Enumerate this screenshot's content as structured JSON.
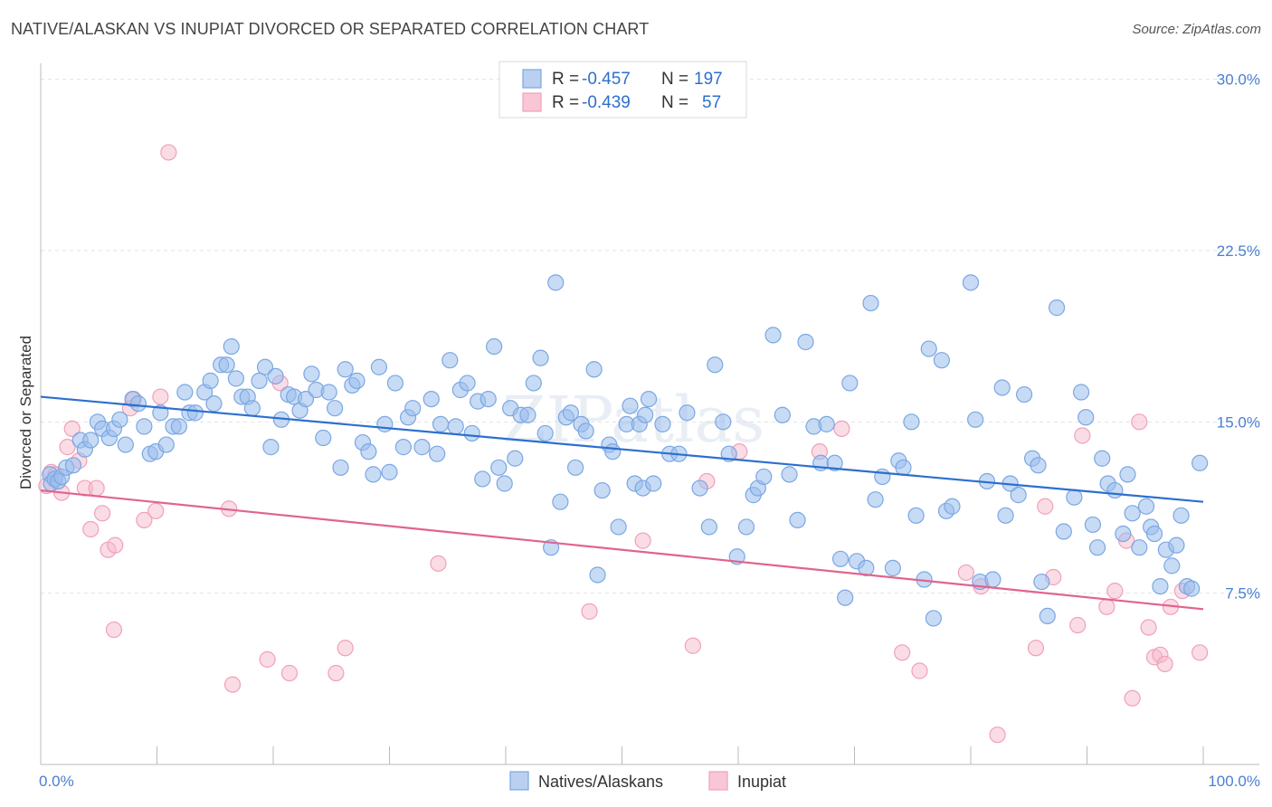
{
  "title": "NATIVE/ALASKAN VS INUPIAT DIVORCED OR SEPARATED CORRELATION CHART",
  "source": "Source: ZipAtlas.com",
  "watermark": "ZIPatlas",
  "colors": {
    "blue": "#7aa7e3",
    "blue_line": "#2d6fce",
    "pink": "#f1a0ba",
    "pink_line": "#e0648e",
    "axis_text": "#4a7fd0"
  },
  "legend": {
    "r_label": "R =",
    "n_label": "N =",
    "series": [
      {
        "name": "Natives/Alaskans",
        "r": "-0.457",
        "n": "197"
      },
      {
        "name": "Inupiat",
        "r": "-0.439",
        "n": "57"
      }
    ]
  },
  "chart_data": {
    "type": "scatter",
    "ylabel": "Divorced or Separated",
    "xlabel": "",
    "xlim": [
      0,
      100
    ],
    "ylim": [
      0,
      30.7
    ],
    "y_ticks": [
      7.5,
      15.0,
      22.5,
      30.0
    ],
    "y_tick_labels": [
      "7.5%",
      "15.0%",
      "22.5%",
      "30.0%"
    ],
    "x_tick_labels": [
      "0.0%",
      "100.0%"
    ],
    "grid": true,
    "series": [
      {
        "name": "Natives/Alaskans",
        "trend": [
          [
            0,
            16.1
          ],
          [
            100,
            11.5
          ]
        ],
        "points": [
          [
            0.8,
            12.7
          ],
          [
            0.9,
            12.3
          ],
          [
            1.2,
            12.5
          ],
          [
            1.5,
            12.4
          ],
          [
            1.8,
            12.6
          ],
          [
            2.2,
            13.0
          ],
          [
            2.8,
            13.1
          ],
          [
            3.4,
            14.2
          ],
          [
            3.8,
            13.8
          ],
          [
            4.3,
            14.2
          ],
          [
            4.9,
            15.0
          ],
          [
            5.3,
            14.7
          ],
          [
            5.9,
            14.3
          ],
          [
            6.3,
            14.7
          ],
          [
            6.8,
            15.1
          ],
          [
            7.3,
            14.0
          ],
          [
            7.9,
            16.0
          ],
          [
            8.4,
            15.8
          ],
          [
            8.9,
            14.8
          ],
          [
            9.4,
            13.6
          ],
          [
            9.9,
            13.7
          ],
          [
            10.3,
            15.4
          ],
          [
            10.8,
            14.0
          ],
          [
            11.4,
            14.8
          ],
          [
            11.9,
            14.8
          ],
          [
            12.4,
            16.3
          ],
          [
            12.8,
            15.4
          ],
          [
            13.3,
            15.4
          ],
          [
            14.1,
            16.3
          ],
          [
            14.6,
            16.8
          ],
          [
            14.9,
            15.8
          ],
          [
            15.5,
            17.5
          ],
          [
            16.0,
            17.5
          ],
          [
            16.4,
            18.3
          ],
          [
            16.8,
            16.9
          ],
          [
            17.3,
            16.1
          ],
          [
            17.8,
            16.1
          ],
          [
            18.2,
            15.6
          ],
          [
            18.8,
            16.8
          ],
          [
            19.3,
            17.4
          ],
          [
            19.8,
            13.9
          ],
          [
            20.2,
            17.0
          ],
          [
            20.7,
            15.1
          ],
          [
            21.3,
            16.2
          ],
          [
            21.8,
            16.1
          ],
          [
            22.3,
            15.5
          ],
          [
            22.8,
            16.0
          ],
          [
            23.3,
            17.1
          ],
          [
            23.7,
            16.4
          ],
          [
            24.3,
            14.3
          ],
          [
            24.8,
            16.3
          ],
          [
            25.3,
            15.6
          ],
          [
            25.8,
            13.0
          ],
          [
            26.2,
            17.3
          ],
          [
            26.8,
            16.6
          ],
          [
            27.2,
            16.8
          ],
          [
            27.7,
            14.1
          ],
          [
            28.2,
            13.7
          ],
          [
            28.6,
            12.7
          ],
          [
            29.1,
            17.4
          ],
          [
            29.6,
            14.9
          ],
          [
            30.0,
            12.8
          ],
          [
            30.5,
            16.7
          ],
          [
            31.2,
            13.9
          ],
          [
            31.6,
            15.2
          ],
          [
            32.0,
            15.6
          ],
          [
            32.8,
            13.9
          ],
          [
            33.6,
            16.0
          ],
          [
            34.1,
            13.6
          ],
          [
            34.4,
            14.9
          ],
          [
            35.2,
            17.7
          ],
          [
            35.7,
            14.8
          ],
          [
            36.1,
            16.4
          ],
          [
            36.7,
            16.7
          ],
          [
            37.1,
            14.5
          ],
          [
            37.6,
            15.9
          ],
          [
            38.0,
            12.5
          ],
          [
            38.5,
            16.0
          ],
          [
            39.0,
            18.3
          ],
          [
            39.4,
            13.0
          ],
          [
            39.9,
            12.3
          ],
          [
            40.4,
            15.6
          ],
          [
            40.8,
            13.4
          ],
          [
            41.3,
            15.3
          ],
          [
            41.9,
            15.3
          ],
          [
            42.4,
            16.7
          ],
          [
            43.0,
            17.8
          ],
          [
            43.4,
            14.5
          ],
          [
            43.9,
            9.5
          ],
          [
            44.3,
            21.1
          ],
          [
            44.7,
            11.5
          ],
          [
            45.2,
            15.2
          ],
          [
            45.6,
            15.4
          ],
          [
            46.0,
            13.0
          ],
          [
            46.5,
            14.9
          ],
          [
            46.9,
            14.6
          ],
          [
            47.6,
            17.3
          ],
          [
            47.9,
            8.3
          ],
          [
            48.3,
            12.0
          ],
          [
            48.9,
            14.0
          ],
          [
            49.2,
            13.7
          ],
          [
            49.7,
            10.4
          ],
          [
            50.4,
            14.9
          ],
          [
            50.7,
            15.7
          ],
          [
            51.1,
            12.3
          ],
          [
            51.5,
            14.9
          ],
          [
            51.8,
            12.1
          ],
          [
            52.0,
            15.3
          ],
          [
            52.3,
            16.0
          ],
          [
            52.7,
            12.3
          ],
          [
            53.5,
            14.9
          ],
          [
            54.1,
            13.6
          ],
          [
            54.9,
            13.6
          ],
          [
            55.6,
            15.4
          ],
          [
            56.7,
            12.1
          ],
          [
            57.5,
            10.4
          ],
          [
            58.0,
            17.5
          ],
          [
            58.7,
            15.0
          ],
          [
            59.2,
            13.6
          ],
          [
            59.9,
            9.1
          ],
          [
            60.7,
            10.4
          ],
          [
            61.3,
            11.8
          ],
          [
            61.7,
            12.1
          ],
          [
            62.2,
            12.6
          ],
          [
            63.0,
            18.8
          ],
          [
            63.8,
            15.3
          ],
          [
            64.4,
            12.7
          ],
          [
            65.1,
            10.7
          ],
          [
            65.8,
            18.5
          ],
          [
            66.5,
            14.8
          ],
          [
            67.1,
            13.2
          ],
          [
            67.6,
            14.9
          ],
          [
            68.3,
            13.2
          ],
          [
            68.8,
            9.0
          ],
          [
            69.2,
            7.3
          ],
          [
            69.6,
            16.7
          ],
          [
            70.2,
            8.9
          ],
          [
            71.0,
            8.6
          ],
          [
            71.4,
            20.2
          ],
          [
            71.8,
            11.6
          ],
          [
            72.4,
            12.6
          ],
          [
            73.3,
            8.6
          ],
          [
            73.8,
            13.3
          ],
          [
            74.2,
            13.0
          ],
          [
            74.9,
            15.0
          ],
          [
            75.3,
            10.9
          ],
          [
            76.0,
            8.1
          ],
          [
            76.4,
            18.2
          ],
          [
            76.8,
            6.4
          ],
          [
            77.5,
            17.7
          ],
          [
            77.9,
            11.1
          ],
          [
            78.4,
            11.3
          ],
          [
            80.0,
            21.1
          ],
          [
            80.4,
            15.1
          ],
          [
            80.8,
            8.0
          ],
          [
            81.4,
            12.4
          ],
          [
            81.9,
            8.1
          ],
          [
            82.7,
            16.5
          ],
          [
            83.0,
            10.9
          ],
          [
            83.4,
            12.3
          ],
          [
            84.1,
            11.8
          ],
          [
            84.6,
            16.2
          ],
          [
            85.3,
            13.4
          ],
          [
            85.8,
            13.1
          ],
          [
            86.1,
            8.0
          ],
          [
            86.6,
            6.5
          ],
          [
            87.4,
            20.0
          ],
          [
            88.0,
            10.2
          ],
          [
            88.9,
            11.7
          ],
          [
            89.5,
            16.3
          ],
          [
            89.9,
            15.2
          ],
          [
            90.5,
            10.5
          ],
          [
            90.9,
            9.5
          ],
          [
            91.3,
            13.4
          ],
          [
            91.8,
            12.3
          ],
          [
            92.4,
            12.0
          ],
          [
            93.1,
            10.1
          ],
          [
            93.5,
            12.7
          ],
          [
            93.9,
            11.0
          ],
          [
            94.5,
            9.5
          ],
          [
            95.1,
            11.3
          ],
          [
            95.5,
            10.4
          ],
          [
            95.8,
            10.1
          ],
          [
            96.3,
            7.8
          ],
          [
            96.8,
            9.4
          ],
          [
            97.3,
            8.7
          ],
          [
            97.7,
            9.6
          ],
          [
            98.1,
            10.9
          ],
          [
            98.6,
            7.8
          ],
          [
            99.0,
            7.7
          ],
          [
            99.7,
            13.2
          ]
        ]
      },
      {
        "name": "Inupiat",
        "trend": [
          [
            0,
            12.0
          ],
          [
            100,
            6.8
          ]
        ],
        "points": [
          [
            0.5,
            12.2
          ],
          [
            0.9,
            12.8
          ],
          [
            1.3,
            12.7
          ],
          [
            1.8,
            11.9
          ],
          [
            2.3,
            13.9
          ],
          [
            2.7,
            14.7
          ],
          [
            3.3,
            13.3
          ],
          [
            3.8,
            12.1
          ],
          [
            4.3,
            10.3
          ],
          [
            4.8,
            12.1
          ],
          [
            5.3,
            11.0
          ],
          [
            5.8,
            9.4
          ],
          [
            6.4,
            9.6
          ],
          [
            6.3,
            5.9
          ],
          [
            7.7,
            15.6
          ],
          [
            8.0,
            16.0
          ],
          [
            8.9,
            10.7
          ],
          [
            9.9,
            11.1
          ],
          [
            10.3,
            16.1
          ],
          [
            11.0,
            26.8
          ],
          [
            16.2,
            11.2
          ],
          [
            16.5,
            3.5
          ],
          [
            19.5,
            4.6
          ],
          [
            20.6,
            16.7
          ],
          [
            21.4,
            4.0
          ],
          [
            25.4,
            4.0
          ],
          [
            26.2,
            5.1
          ],
          [
            34.2,
            8.8
          ],
          [
            47.2,
            6.7
          ],
          [
            51.8,
            9.8
          ],
          [
            56.1,
            5.2
          ],
          [
            57.3,
            12.4
          ],
          [
            60.1,
            13.7
          ],
          [
            67.0,
            13.7
          ],
          [
            68.9,
            14.7
          ],
          [
            74.1,
            4.9
          ],
          [
            75.6,
            4.1
          ],
          [
            79.6,
            8.4
          ],
          [
            80.9,
            7.8
          ],
          [
            82.3,
            1.3
          ],
          [
            85.6,
            5.1
          ],
          [
            86.4,
            11.3
          ],
          [
            87.1,
            8.2
          ],
          [
            89.2,
            6.1
          ],
          [
            89.6,
            14.4
          ],
          [
            91.7,
            6.9
          ],
          [
            92.4,
            7.6
          ],
          [
            93.4,
            9.8
          ],
          [
            93.9,
            2.9
          ],
          [
            94.5,
            15.0
          ],
          [
            95.3,
            6.0
          ],
          [
            95.8,
            4.7
          ],
          [
            96.3,
            4.8
          ],
          [
            96.7,
            4.4
          ],
          [
            97.2,
            6.9
          ],
          [
            98.2,
            7.6
          ],
          [
            99.7,
            4.9
          ]
        ]
      }
    ]
  }
}
